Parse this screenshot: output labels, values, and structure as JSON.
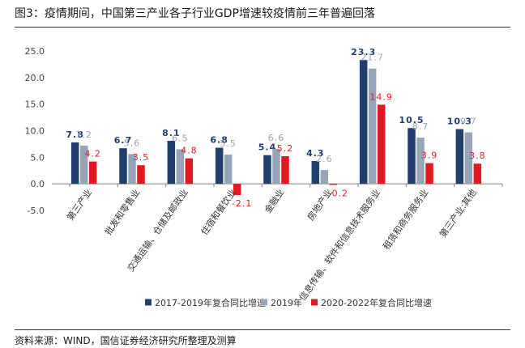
{
  "figure": {
    "title": "图3：疫情期间，中国第三产业各子行业GDP增速较疫情前三年普遍回落",
    "source": "资料来源：WIND，国信证券经济研究所整理及测算"
  },
  "colors": {
    "s1": "#1f3f6e",
    "s2": "#98a5b8",
    "s3": "#e11920",
    "axis": "#808080",
    "tick_text": "#444444"
  },
  "chart_data": {
    "type": "bar",
    "title": "",
    "xlabel": "",
    "ylabel": "",
    "ylim": [
      -5,
      25
    ],
    "yticks": [
      "-5.0",
      "0.0",
      "5.0",
      "10.0",
      "15.0",
      "20.0",
      "25.0"
    ],
    "ytick_values": [
      -5,
      0,
      5,
      10,
      15,
      20,
      25
    ],
    "grid": false,
    "legend_position": "bottom",
    "categories": [
      "第三产业",
      "批发和零售业",
      "交通运输、仓储及邮政业",
      "住宿和餐饮业",
      "金融业",
      "房地产业",
      "信息传输、软件和信息技术服务业",
      "租赁和商务服务业",
      "第三产业:其他"
    ],
    "series": [
      {
        "name": "2017-2019年复合同比增速",
        "values": [
          7.8,
          6.7,
          8.1,
          6.8,
          5.4,
          4.3,
          23.3,
          10.5,
          10.3
        ],
        "labels": [
          "7.8",
          "6.7",
          "8.1",
          "6.8",
          "5.4",
          "4.3",
          "23.3",
          "10.5",
          "10.3"
        ]
      },
      {
        "name": "2019年",
        "values": [
          7.2,
          5.6,
          6.5,
          5.5,
          6.6,
          2.6,
          21.7,
          8.7,
          9.7
        ],
        "labels": [
          "7.2",
          "5.6",
          "6.5",
          "5.5",
          "6.6",
          "2.6",
          "21.7",
          "8.7",
          "9.7"
        ]
      },
      {
        "name": "2020-2022年复合同比增速",
        "values": [
          4.2,
          3.5,
          4.8,
          -2.1,
          5.2,
          -0.2,
          14.9,
          3.9,
          3.8
        ],
        "labels": [
          "4.2",
          "3.5",
          "4.8",
          "-2.1",
          "5.2",
          "-0.2",
          "14.9",
          "3.9",
          "3.8"
        ]
      }
    ]
  }
}
